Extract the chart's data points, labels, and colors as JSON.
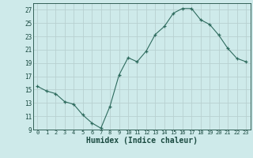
{
  "x": [
    0,
    1,
    2,
    3,
    4,
    5,
    6,
    7,
    8,
    9,
    10,
    11,
    12,
    13,
    14,
    15,
    16,
    17,
    18,
    19,
    20,
    21,
    22,
    23
  ],
  "y": [
    15.5,
    14.8,
    14.4,
    13.2,
    12.8,
    11.2,
    10.0,
    9.2,
    12.5,
    17.2,
    19.8,
    19.2,
    20.8,
    23.3,
    24.5,
    26.5,
    27.2,
    27.2,
    25.5,
    24.8,
    23.2,
    21.2,
    19.7,
    19.2
  ],
  "xlabel": "Humidex (Indice chaleur)",
  "ylim": [
    9,
    28
  ],
  "xlim": [
    -0.5,
    23.5
  ],
  "yticks": [
    9,
    11,
    13,
    15,
    17,
    19,
    21,
    23,
    25,
    27
  ],
  "xticks": [
    0,
    1,
    2,
    3,
    4,
    5,
    6,
    7,
    8,
    9,
    10,
    11,
    12,
    13,
    14,
    15,
    16,
    17,
    18,
    19,
    20,
    21,
    22,
    23
  ],
  "line_color": "#2e6b5e",
  "marker": "+",
  "bg_color": "#ceeaea",
  "grid_color": "#b8d0d0",
  "label_color": "#1a4a40",
  "tick_fontsize": 5.0,
  "xlabel_fontsize": 7.0
}
